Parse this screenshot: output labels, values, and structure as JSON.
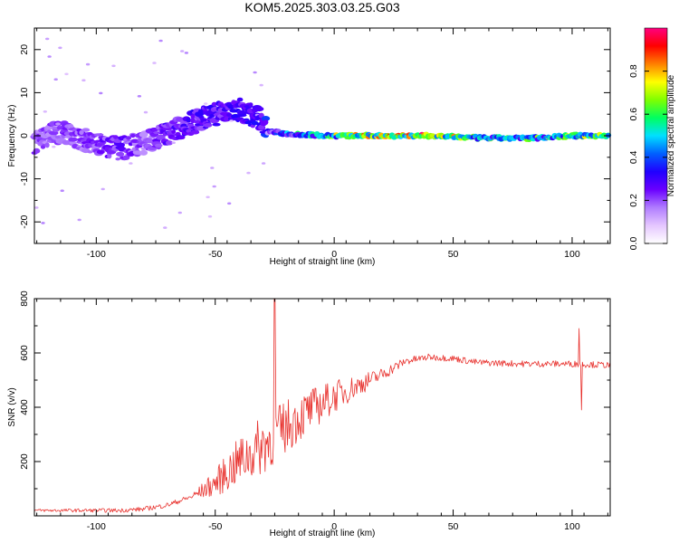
{
  "title": "KOM5.2025.303.03.25.G03",
  "chart_data": [
    {
      "type": "heatmap",
      "name": "spectrogram",
      "xlabel": "Height of straight line (km)",
      "ylabel": "Frequency (Hz)",
      "xlim": [
        -126,
        116
      ],
      "ylim": [
        -25,
        25
      ],
      "xticks": [
        -100,
        -50,
        0,
        50,
        100
      ],
      "yticks": [
        -20,
        -10,
        0,
        10,
        20
      ],
      "colorbar": {
        "label": "Normalized spectral amplitude",
        "range": [
          0,
          1
        ],
        "ticks": [
          "0.0",
          "0.2",
          "0.4",
          "0.6",
          "0.8"
        ],
        "tick_values": [
          0.0,
          0.2,
          0.4,
          0.6,
          0.8
        ],
        "colormap": [
          "#ffffff",
          "#e5c7ff",
          "#b07cff",
          "#6a00ff",
          "#2000ff",
          "#0060ff",
          "#00e0ff",
          "#00ff60",
          "#80ff00",
          "#ffff00",
          "#ff8000",
          "#ff0000",
          "#ff0080"
        ]
      },
      "ridge": {
        "x": [
          -126,
          -115,
          -100,
          -90,
          -80,
          -70,
          -60,
          -50,
          -40,
          -31,
          -28,
          -20,
          -10,
          0,
          20,
          40,
          60,
          80,
          100,
          116
        ],
        "freq": [
          -1.5,
          1.0,
          -2.0,
          -3.0,
          -1.5,
          0.5,
          3.0,
          5.0,
          6.0,
          4.0,
          1.0,
          0.5,
          0.2,
          0.0,
          0.0,
          0.0,
          -0.5,
          -0.6,
          0.0,
          0.0
        ],
        "amplitude": [
          0.2,
          0.2,
          0.22,
          0.25,
          0.2,
          0.25,
          0.27,
          0.28,
          0.28,
          0.3,
          0.35,
          0.45,
          0.55,
          0.65,
          0.8,
          0.85,
          0.6,
          0.55,
          0.7,
          0.75
        ]
      }
    },
    {
      "type": "line",
      "name": "snr",
      "xlabel": "Height of straight line (km)",
      "ylabel": "SNR (v/v)",
      "xlim": [
        -126,
        116
      ],
      "ylim": [
        0,
        800
      ],
      "xticks": [
        -100,
        -50,
        0,
        50,
        100
      ],
      "yticks": [
        200,
        400,
        600,
        800
      ],
      "color": "#e8322e",
      "trend": {
        "x": [
          -126,
          -90,
          -80,
          -70,
          -60,
          -50,
          -40,
          -30,
          -20,
          -10,
          0,
          10,
          20,
          30,
          40,
          50,
          60,
          80,
          100,
          116
        ],
        "y": [
          20,
          20,
          25,
          40,
          70,
          120,
          200,
          260,
          330,
          390,
          440,
          480,
          520,
          570,
          585,
          580,
          565,
          560,
          560,
          555
        ]
      },
      "noise": {
        "x": [
          -126,
          -60,
          -50,
          -40,
          -30,
          -20,
          -10,
          0,
          10,
          20,
          30,
          40,
          100,
          116
        ],
        "amp": [
          5,
          10,
          50,
          90,
          110,
          100,
          80,
          60,
          40,
          25,
          15,
          12,
          12,
          12
        ]
      },
      "spikes": [
        {
          "x": -25,
          "y": 800
        },
        {
          "x": 103,
          "y": 690
        },
        {
          "x": 104,
          "y": 390
        }
      ]
    }
  ]
}
